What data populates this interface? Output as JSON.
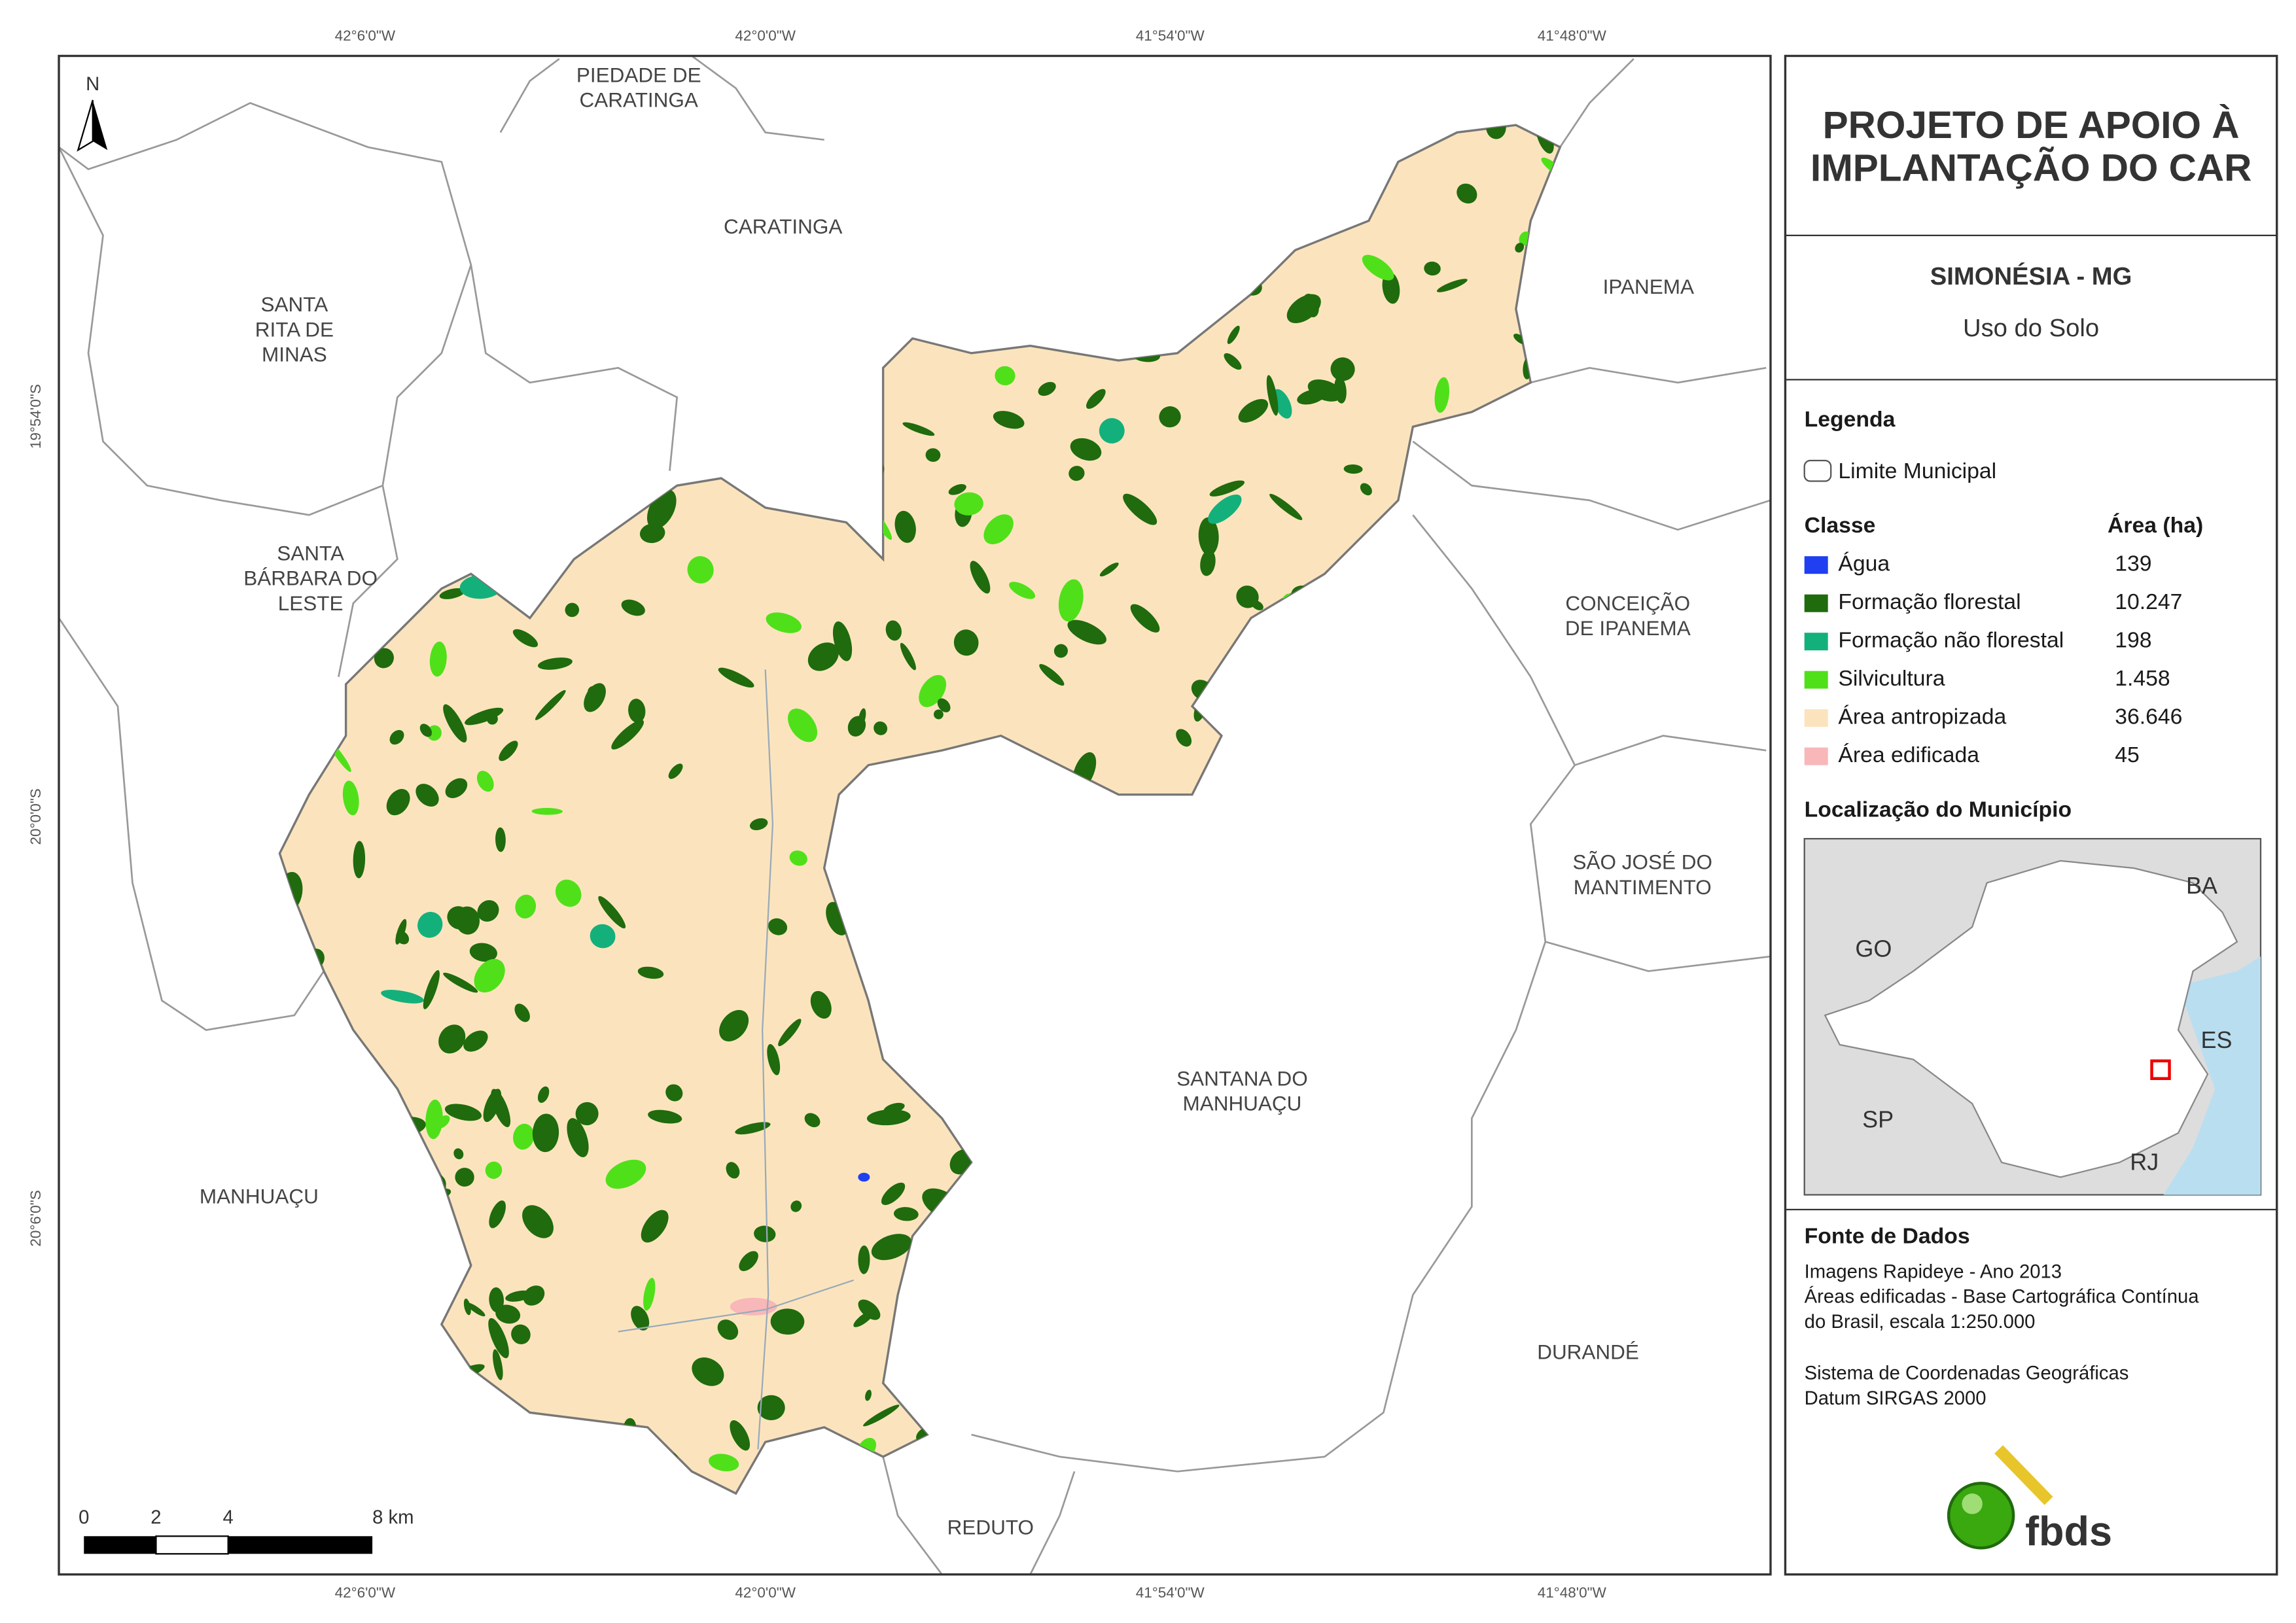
{
  "map": {
    "north": "N",
    "coords_top": [
      "42°6'0\"W",
      "42°0'0\"W",
      "41°54'0\"W",
      "41°48'0\"W"
    ],
    "coords_bottom": [
      "42°6'0\"W",
      "42°0'0\"W",
      "41°54'0\"W",
      "41°48'0\"W"
    ],
    "coords_left": [
      "19°54'0\"S",
      "20°0'0\"S",
      "20°6'0\"S"
    ],
    "scale": {
      "ticks": [
        "0",
        "2",
        "4",
        "8 km"
      ]
    },
    "places": [
      {
        "lines": [
          "PIEDADE DE",
          "CARATINGA"
        ]
      },
      {
        "lines": [
          "CARATINGA"
        ]
      },
      {
        "lines": [
          "SANTA",
          "RITA DE",
          "MINAS"
        ]
      },
      {
        "lines": [
          "IPANEMA"
        ]
      },
      {
        "lines": [
          "SANTA",
          "BÁRBARA DO",
          "LESTE"
        ]
      },
      {
        "lines": [
          "CONCEIÇÃO",
          "DE IPANEMA"
        ]
      },
      {
        "lines": [
          "SÃO JOSÉ DO",
          "MANTIMENTO"
        ]
      },
      {
        "lines": [
          "SANTANA DO",
          "MANHUAÇU"
        ]
      },
      {
        "lines": [
          "MANHUAÇU"
        ]
      },
      {
        "lines": [
          "DURANDÉ"
        ]
      },
      {
        "lines": [
          "REDUTO"
        ]
      }
    ]
  },
  "panel": {
    "title": [
      "PROJETO DE APOIO À",
      "IMPLANTAÇÃO DO CAR"
    ],
    "municipality": "SIMONÉSIA - MG",
    "theme": "Uso do Solo",
    "legend": {
      "heading": "Legenda",
      "boundary": "Limite Municipal",
      "class_header": "Classe",
      "area_header": "Área (ha)",
      "classes": [
        {
          "name": "Água",
          "area": "139",
          "color": "#1f3ff0"
        },
        {
          "name": "Formação florestal",
          "area": "10.247",
          "color": "#1f6b0d"
        },
        {
          "name": "Formação não florestal",
          "area": "198",
          "color": "#13b07c"
        },
        {
          "name": "Silvicultura",
          "area": "1.458",
          "color": "#4fe01a"
        },
        {
          "name": "Área antropizada",
          "area": "36.646",
          "color": "#fbe4bd"
        },
        {
          "name": "Área edificada",
          "area": "45",
          "color": "#f8b7b9"
        }
      ]
    },
    "location": {
      "heading": "Localização do Município",
      "states": [
        "BA",
        "GO",
        "ES",
        "SP",
        "RJ"
      ]
    },
    "sources": {
      "heading": "Fonte de Dados",
      "lines": [
        "Imagens Rapideye - Ano 2013",
        "Áreas edificadas - Base Cartográfica Contínua",
        "do Brasil, escala 1:250.000",
        "Sistema de Coordenadas Geográficas",
        "Datum SIRGAS 2000"
      ]
    },
    "logo": "fbds"
  }
}
